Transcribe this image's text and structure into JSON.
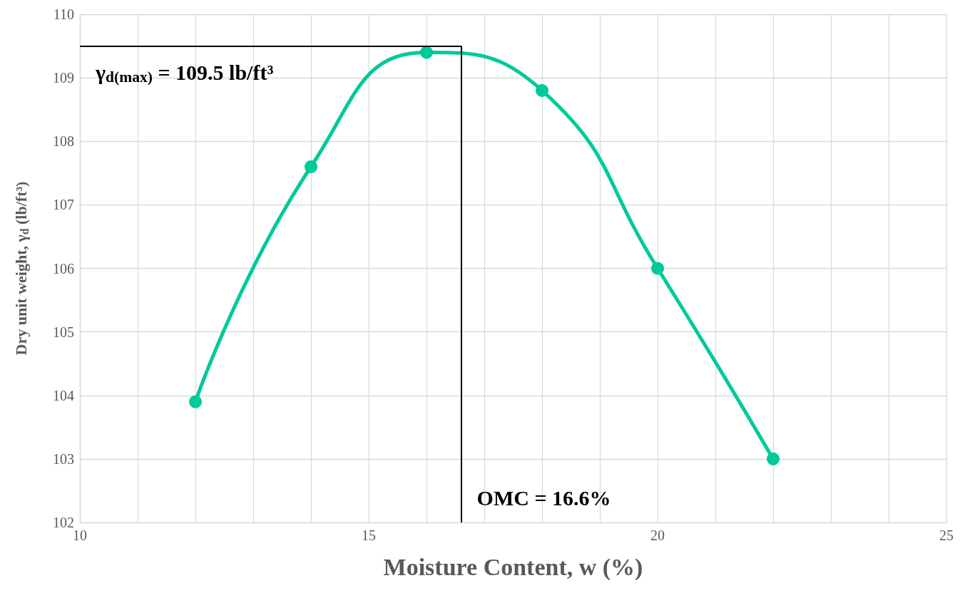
{
  "chart_data": {
    "type": "line",
    "xlabel": "Moisture Content, w (%)",
    "ylabel": "Dry unit weight, γ$_{d}$ (lb/ft³)",
    "x": [
      12,
      14,
      16,
      18,
      20,
      22
    ],
    "series": [
      {
        "color": "#00c99a",
        "values": [
          103.9,
          107.6,
          109.4,
          108.8,
          106.0,
          103.0
        ]
      }
    ],
    "xlim": [
      10,
      25
    ],
    "xticks": [
      10,
      {
        "value": 11,
        "label": null
      },
      {
        "value": 12,
        "label": null
      },
      {
        "value": 13,
        "label": null
      },
      {
        "value": 14,
        "label": null
      },
      15,
      {
        "value": 16,
        "label": null
      },
      {
        "value": 17,
        "label": null
      },
      {
        "value": 18,
        "label": null
      },
      {
        "value": 19,
        "label": null
      },
      20,
      {
        "value": 21,
        "label": null
      },
      {
        "value": 22,
        "label": null
      },
      {
        "value": 23,
        "label": null
      },
      {
        "value": 24,
        "label": null
      },
      25
    ],
    "ylim": [
      102,
      110
    ],
    "yticks": [
      102,
      103,
      104,
      105,
      106,
      107,
      108,
      109,
      110
    ],
    "grid": true,
    "marker": "circle",
    "line_style": "solid",
    "ref_lines": [
      {
        "axis": "y",
        "value": 109.5,
        "label": "γ$_{d(max)}$ = 109.5 lb/ft³",
        "color": "#000000"
      },
      {
        "axis": "x",
        "value": 16.6,
        "label": "OMC = 16.6%",
        "color": "#000000"
      }
    ]
  }
}
